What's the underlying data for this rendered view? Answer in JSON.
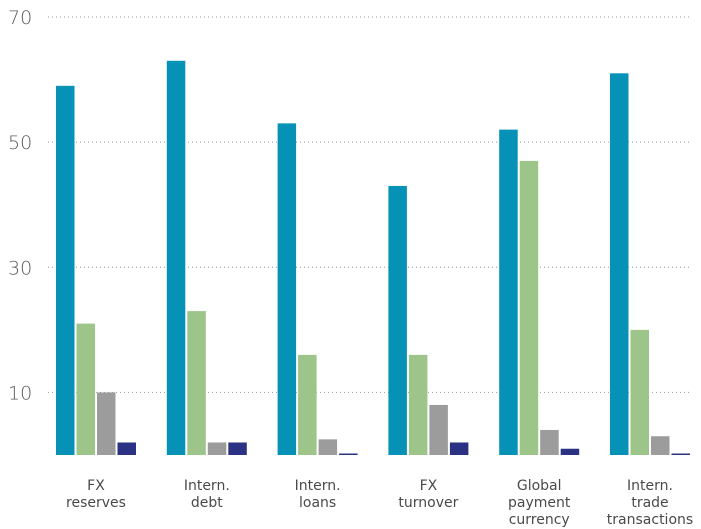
{
  "chart_data": {
    "type": "bar",
    "title": "",
    "xlabel": "",
    "ylabel": "",
    "ylim": [
      0,
      70
    ],
    "yticks": [
      10,
      30,
      50,
      70
    ],
    "grid": true,
    "categories": [
      [
        "FX",
        "reserves"
      ],
      [
        "Intern.",
        "debt"
      ],
      [
        "Intern.",
        "loans"
      ],
      [
        "FX",
        "turnover"
      ],
      [
        "Global",
        "payment",
        "currency"
      ],
      [
        "Intern.",
        "trade",
        "transactions"
      ]
    ],
    "series": [
      {
        "color": "#0592b6",
        "values": [
          59,
          63,
          53,
          43,
          52,
          61
        ]
      },
      {
        "color": "#9dc58a",
        "values": [
          21,
          23,
          16,
          16,
          47,
          20
        ]
      },
      {
        "color": "#9c9c9c",
        "values": [
          10,
          2,
          2.5,
          8,
          4,
          3
        ]
      },
      {
        "color": "#2b3283",
        "values": [
          2,
          2,
          0.2,
          2,
          1,
          0.2
        ]
      }
    ]
  }
}
